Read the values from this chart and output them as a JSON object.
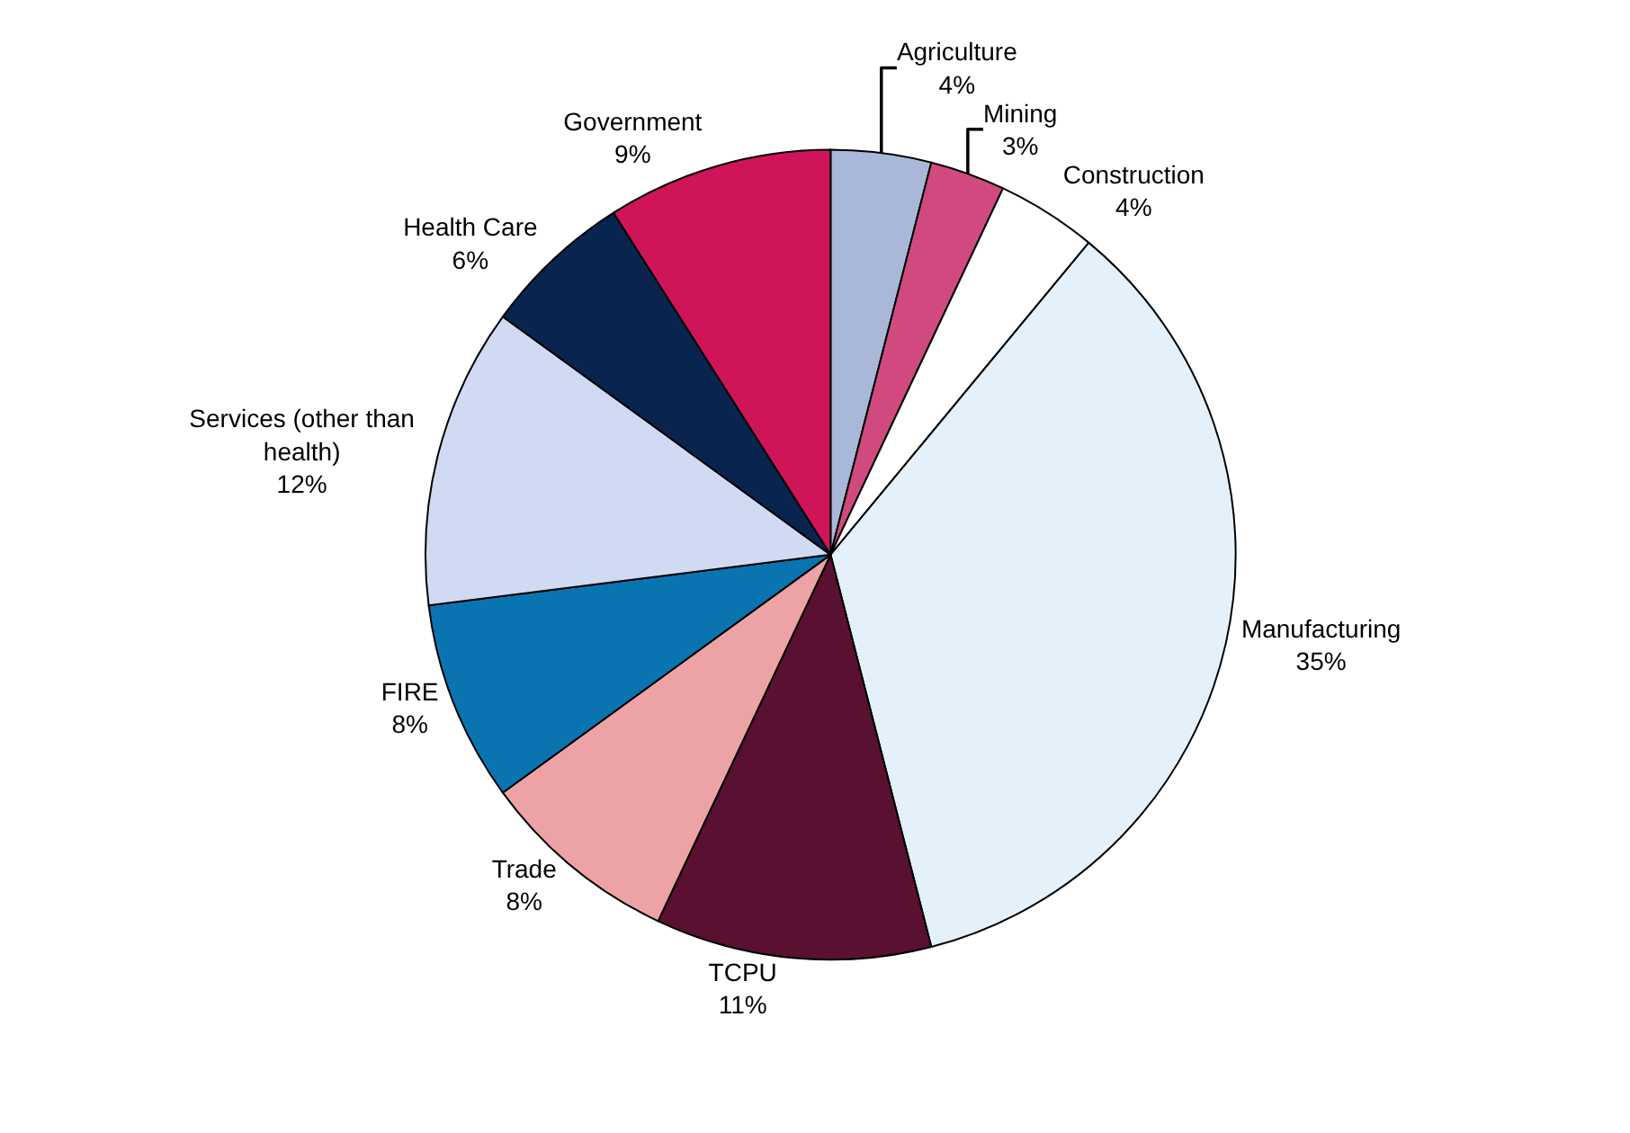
{
  "chart_data": {
    "type": "pie",
    "categories": [
      "Agriculture",
      "Mining",
      "Construction",
      "Manufacturing",
      "TCPU",
      "Trade",
      "FIRE",
      "Services (other than health)",
      "Health Care",
      "Government"
    ],
    "values": [
      4,
      3,
      4,
      35,
      11,
      8,
      8,
      12,
      6,
      9
    ],
    "value_labels": [
      "4%",
      "3%",
      "4%",
      "35%",
      "11%",
      "8%",
      "8%",
      "12%",
      "6%",
      "9%"
    ],
    "colors": [
      "#a9b8d8",
      "#d04a80",
      "#ffffff",
      "#e4f1fa",
      "#5a1030",
      "#eda3a6",
      "#0a74b0",
      "#d0daf2",
      "#0a2450",
      "#d0145a"
    ],
    "legend": false
  }
}
